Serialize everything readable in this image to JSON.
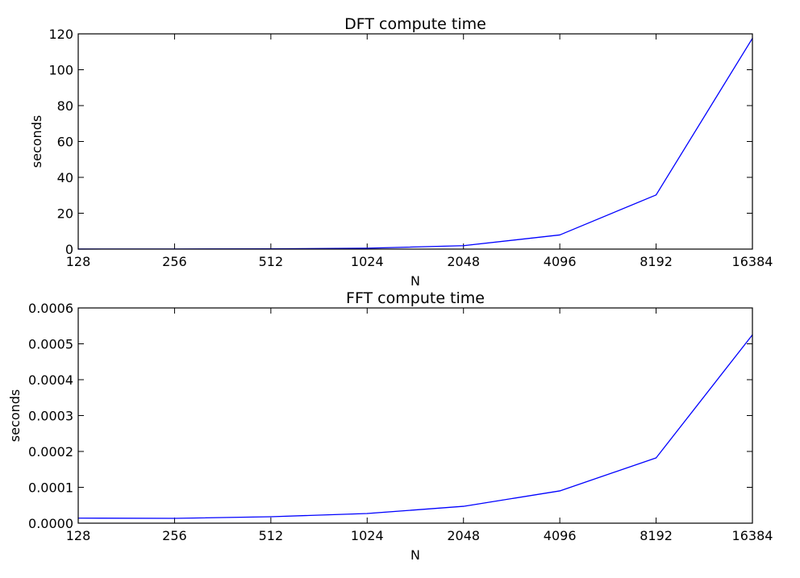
{
  "chart_data": [
    {
      "type": "line",
      "title": "DFT compute time",
      "xlabel": "N",
      "ylabel": "seconds",
      "x": [
        128,
        256,
        512,
        1024,
        2048,
        4096,
        8192,
        16384
      ],
      "x_scale": "log2",
      "xticks": [
        "128",
        "256",
        "512",
        "1024",
        "2048",
        "4096",
        "8192",
        "16384"
      ],
      "ylim": [
        0,
        120
      ],
      "yticks": [
        "0",
        "20",
        "40",
        "60",
        "80",
        "100",
        "120"
      ],
      "grid": false,
      "series": [
        {
          "color": "#0000ff",
          "values": [
            0.03,
            0.07,
            0.14,
            0.5,
            1.9,
            7.9,
            30.2,
            117.5
          ]
        }
      ]
    },
    {
      "type": "line",
      "title": "FFT compute time",
      "xlabel": "N",
      "ylabel": "seconds",
      "x": [
        128,
        256,
        512,
        1024,
        2048,
        4096,
        8192,
        16384
      ],
      "x_scale": "log2",
      "xticks": [
        "128",
        "256",
        "512",
        "1024",
        "2048",
        "4096",
        "8192",
        "16384"
      ],
      "ylim": [
        0,
        0.0006
      ],
      "yticks": [
        "0.0000",
        "0.0001",
        "0.0002",
        "0.0003",
        "0.0004",
        "0.0005",
        "0.0006"
      ],
      "grid": false,
      "series": [
        {
          "color": "#0000ff",
          "values": [
            1.4e-05,
            1.35e-05,
            1.8e-05,
            2.7e-05,
            4.7e-05,
            9e-05,
            0.000182,
            0.000525
          ]
        }
      ]
    }
  ]
}
